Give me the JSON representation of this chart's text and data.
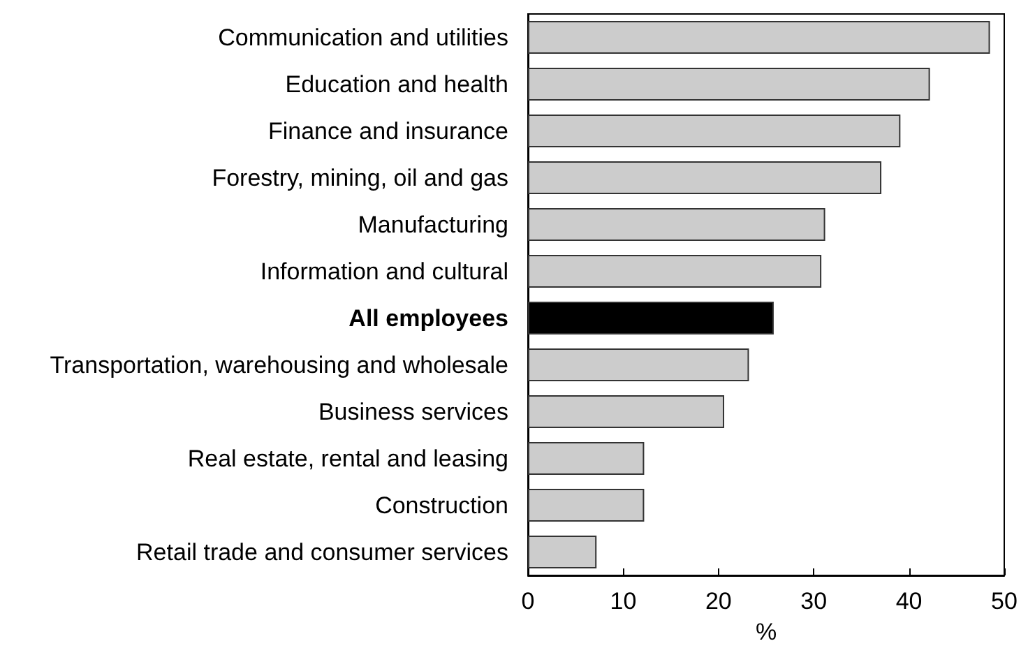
{
  "chart_data": {
    "type": "bar",
    "orientation": "horizontal",
    "xlabel": "%",
    "categories": [
      "Communication and utilities",
      "Education and health",
      "Finance and insurance",
      "Forestry, mining, oil and gas",
      "Manufacturing",
      "Information and cultural",
      "All employees",
      "Transportation, warehousing and wholesale",
      "Business services",
      "Real estate, rental and leasing",
      "Construction",
      "Retail trade and consumer services"
    ],
    "values": [
      48.5,
      42.2,
      39.1,
      37.1,
      31.2,
      30.8,
      25.8,
      23.2,
      20.6,
      12.2,
      12.2,
      7.2
    ],
    "colors": [
      "#cccccc",
      "#cccccc",
      "#cccccc",
      "#cccccc",
      "#cccccc",
      "#cccccc",
      "#000000",
      "#cccccc",
      "#cccccc",
      "#cccccc",
      "#cccccc",
      "#cccccc"
    ],
    "xlim": [
      0,
      50
    ],
    "xticks": [
      0,
      10,
      20,
      30,
      40,
      50
    ],
    "grid": false
  }
}
